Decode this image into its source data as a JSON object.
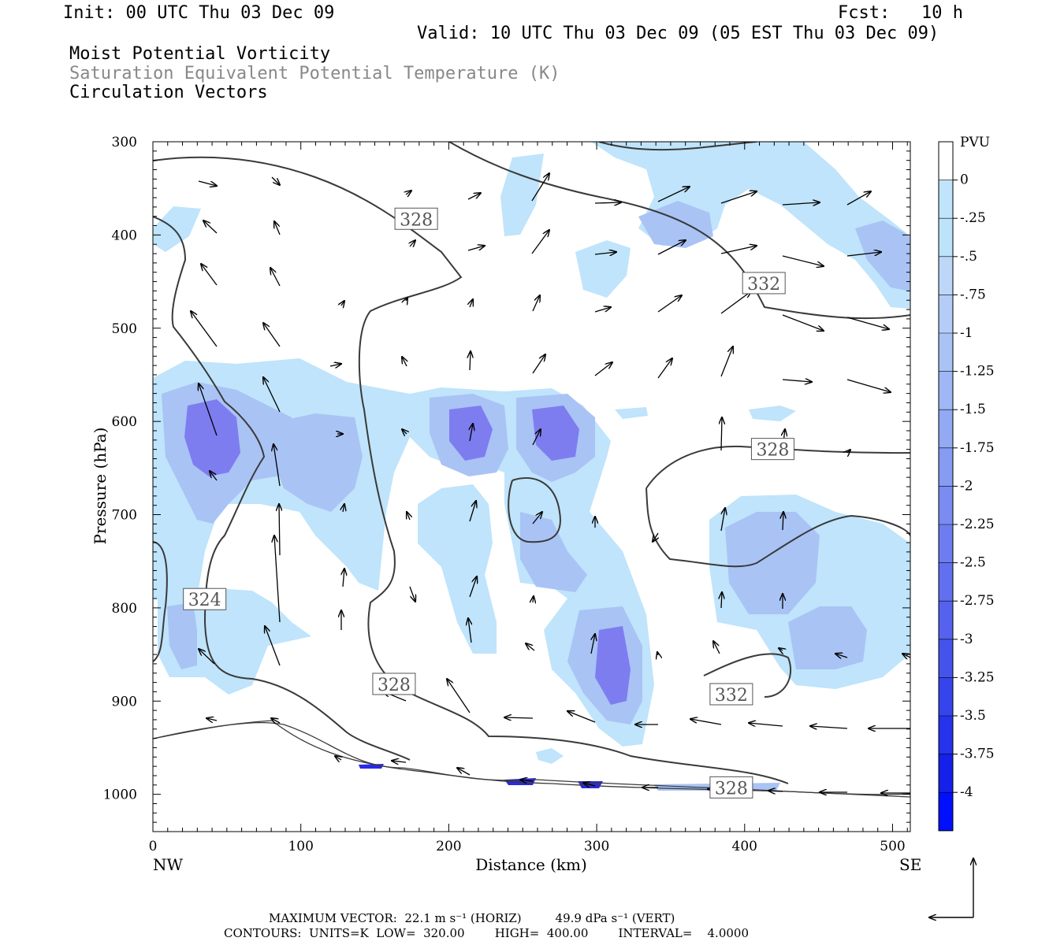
{
  "header": {
    "init": "Init: 00 UTC Thu 03 Dec 09",
    "fcst": "Fcst:   10 h",
    "valid": "Valid: 10 UTC Thu 03 Dec 09 (05 EST Thu 03 Dec 09)",
    "title1": "Moist Potential Vorticity",
    "title2": "Saturation Equivalent Potential Temperature (K)",
    "title3": "Circulation Vectors"
  },
  "footer": {
    "max_vector": "MAXIMUM VECTOR:  22.1 m s⁻¹ (HORIZ)         49.9 dPa s⁻¹ (VERT)",
    "contours": "CONTOURS:  UNITS=K  LOW=  320.00        HIGH=  400.00        INTERVAL=    4.0000"
  },
  "colors": {
    "pv_light": "#bfe4fb",
    "pv_mid": "#a9c3f5",
    "pv_dark": "#7d7df0",
    "pv_deep": "#2a2ae6",
    "contour": "#3a3a3a"
  },
  "chart_data": {
    "type": "contour",
    "xlabel": "Distance (km)",
    "ylabel": "Pressure (hPa)",
    "x_ticks": [
      "0",
      "100",
      "200",
      "300",
      "400",
      "500"
    ],
    "y_ticks": [
      "300",
      "400",
      "500",
      "600",
      "700",
      "800",
      "900",
      "1000"
    ],
    "xlim": [
      0,
      512
    ],
    "ylim": [
      1040,
      300
    ],
    "endpoints": {
      "left": "NW",
      "right": "SE"
    },
    "colorbar": {
      "unit": "PVU",
      "labels": [
        "0",
        "-.25",
        "-.5",
        "-.75",
        "-1",
        "-1.25",
        "-1.5",
        "-1.75",
        "-2",
        "-2.25",
        "-2.5",
        "-2.75",
        "-3",
        "-3.25",
        "-3.5",
        "-3.75",
        "-4"
      ],
      "colors": [
        "#ffffff",
        "#ffffff",
        "#bfe4fb",
        "#bde3fa",
        "#bdd7f8",
        "#b4cdf7",
        "#aac3f5",
        "#9fb7f4",
        "#92a9f3",
        "#869bf2",
        "#7a8cf1",
        "#6d7df0",
        "#6170ef",
        "#5462ee",
        "#4553ed",
        "#3644ec",
        "#2632eb",
        "#1520ea",
        "#0010ff"
      ]
    },
    "contour_labels": [
      {
        "value": "328",
        "x": 178,
        "p": 383
      },
      {
        "value": "332",
        "x": 413,
        "p": 452
      },
      {
        "value": "328",
        "x": 419,
        "p": 630
      },
      {
        "value": "324",
        "x": 35,
        "p": 791
      },
      {
        "value": "328",
        "x": 163,
        "p": 882
      },
      {
        "value": "332",
        "x": 391,
        "p": 893
      },
      {
        "value": "328",
        "x": 391,
        "p": 993
      }
    ],
    "pv_regions": [
      {
        "level": "-.5",
        "center": [
          40,
          600
        ]
      },
      {
        "level": "-1.75",
        "center": [
          38,
          620
        ]
      },
      {
        "level": "-1.5",
        "center": [
          215,
          615
        ]
      },
      {
        "level": "-1.5",
        "center": [
          273,
          615
        ]
      },
      {
        "level": "-1",
        "center": [
          300,
          860
        ]
      },
      {
        "level": "-1",
        "center": [
          410,
          740
        ]
      },
      {
        "level": "-.75",
        "center": [
          355,
          395
        ]
      },
      {
        "level": "-.75",
        "center": [
          500,
          415
        ]
      }
    ]
  }
}
